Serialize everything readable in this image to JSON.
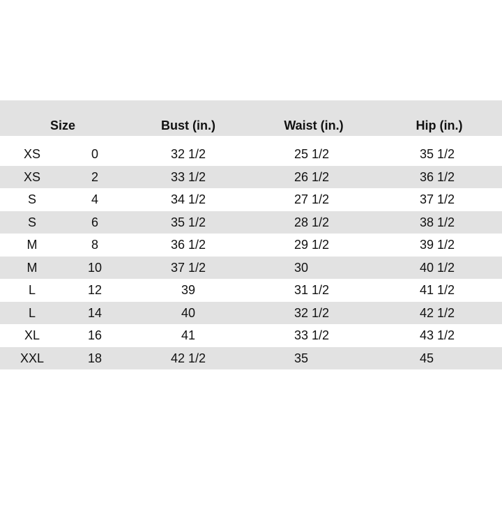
{
  "headers": {
    "size": "Size",
    "bust": "Bust (in.)",
    "waist": "Waist (in.)",
    "hip": "Hip (in.)"
  },
  "rows": [
    {
      "size": "XS",
      "number": "0",
      "bust": "32 1/2",
      "waist": "25 1/2",
      "hip": "35 1/2"
    },
    {
      "size": "XS",
      "number": "2",
      "bust": "33 1/2",
      "waist": "26 1/2",
      "hip": "36 1/2"
    },
    {
      "size": "S",
      "number": "4",
      "bust": "34 1/2",
      "waist": "27 1/2",
      "hip": "37 1/2"
    },
    {
      "size": "S",
      "number": "6",
      "bust": "35 1/2",
      "waist": "28 1/2",
      "hip": "38 1/2"
    },
    {
      "size": "M",
      "number": "8",
      "bust": "36 1/2",
      "waist": "29 1/2",
      "hip": "39 1/2"
    },
    {
      "size": "M",
      "number": "10",
      "bust": "37 1/2",
      "waist": "30",
      "hip": "40 1/2"
    },
    {
      "size": "L",
      "number": "12",
      "bust": "39",
      "waist": "31 1/2",
      "hip": "41 1/2"
    },
    {
      "size": "L",
      "number": "14",
      "bust": "40",
      "waist": "32 1/2",
      "hip": "42 1/2"
    },
    {
      "size": "XL",
      "number": "16",
      "bust": "41",
      "waist": "33 1/2",
      "hip": "43 1/2"
    },
    {
      "size": "XXL",
      "number": "18",
      "bust": "42 1/2",
      "waist": "35",
      "hip": "45"
    }
  ]
}
